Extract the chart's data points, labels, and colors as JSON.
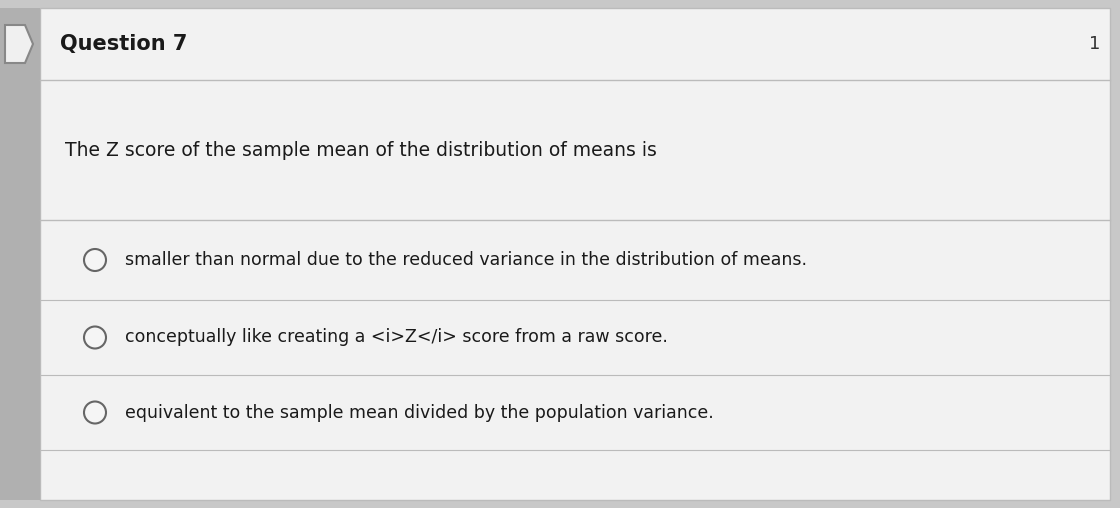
{
  "title": "Question 7",
  "title_fontsize": 15,
  "title_fontweight": "bold",
  "question_text": "The Z score of the sample mean of the distribution of means is",
  "question_fontsize": 13.5,
  "options": [
    "smaller than normal due to the reduced variance in the distribution of means.",
    "conceptually like creating a <i>Z</i> score from a raw score.",
    "equivalent to the sample mean divided by the population variance."
  ],
  "option_fontsize": 12.5,
  "outer_bg_color": "#c8c8c8",
  "card_bg": "#f2f2f2",
  "header_bg": "#eeeeee",
  "separator_color": "#bbbbbb",
  "left_bar_color": "#888888",
  "text_color": "#1a1a1a",
  "number_color": "#333333",
  "radio_edge_color": "#666666",
  "radio_face_color": "#f5f5f5",
  "number_top_right": "1"
}
